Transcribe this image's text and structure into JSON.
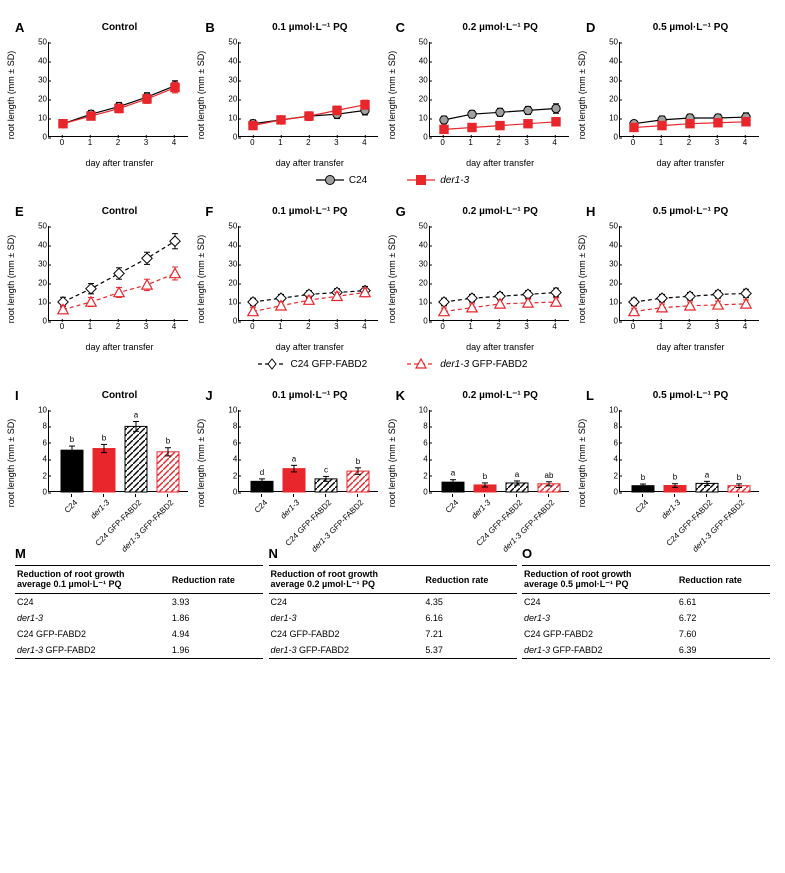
{
  "figure": {
    "ylabel": "root length (mm ± SD)",
    "xlabel_line": "day after transfer",
    "xtick_labels": [
      "0",
      "1",
      "2",
      "3",
      "4"
    ],
    "line_ylim": [
      0,
      50
    ],
    "line_yticks": [
      0,
      10,
      20,
      30,
      40,
      50
    ],
    "bar_ylim": [
      0,
      10
    ],
    "bar_yticks": [
      0,
      2,
      4,
      6,
      8,
      10
    ],
    "colors": {
      "c24": "#a0a0a0",
      "c24_stroke": "#000000",
      "der13": "#e8262b",
      "der13_stroke": "#e8262b",
      "c24_gfp_fill": "#ffffff",
      "c24_gfp_stroke": "#000000",
      "der13_gfp_fill": "#ffffff",
      "der13_gfp_stroke": "#e8262b",
      "grid": "#ffffff",
      "bg": "#ffffff",
      "black": "#000000"
    },
    "marker_size": 4.2,
    "line_width": 1.2,
    "error_cap": 3
  },
  "panels_row1": [
    {
      "letter": "A",
      "title": "Control",
      "c24": [
        7,
        12,
        16,
        21,
        27
      ],
      "c24_err": [
        2,
        2,
        2.2,
        2.3,
        2.6
      ],
      "der": [
        7,
        11,
        15,
        20,
        26
      ],
      "der_err": [
        2,
        2,
        2.2,
        2.3,
        2.8
      ]
    },
    {
      "letter": "B",
      "title": "0.1 µmol·L⁻¹ PQ",
      "c24": [
        7,
        9,
        11,
        12,
        14
      ],
      "c24_err": [
        2,
        2,
        2.2,
        2.3,
        2.4
      ],
      "der": [
        6,
        9,
        11,
        14,
        17
      ],
      "der_err": [
        1.8,
        2,
        2.2,
        2.3,
        2.4
      ]
    },
    {
      "letter": "C",
      "title": "0.2 µmol·L⁻¹ PQ",
      "c24": [
        9,
        12,
        13,
        14,
        15
      ],
      "c24_err": [
        2,
        2,
        2.1,
        2.1,
        2.5
      ],
      "der": [
        4,
        5,
        6,
        7,
        8
      ],
      "der_err": [
        1.8,
        2,
        2,
        2,
        2.2
      ]
    },
    {
      "letter": "D",
      "title": "0.5 µmol·L⁻¹ PQ",
      "c24": [
        7,
        9,
        10,
        10,
        10.5
      ],
      "c24_err": [
        1.6,
        2,
        2,
        2,
        2.2
      ],
      "der": [
        5,
        6,
        7,
        7.5,
        8
      ],
      "der_err": [
        1.6,
        1.8,
        2,
        2,
        2.2
      ]
    }
  ],
  "legend1": {
    "c24": "C24",
    "der": "der1-3"
  },
  "panels_row2": [
    {
      "letter": "E",
      "title": "Control",
      "c24g": [
        10,
        17,
        25,
        33,
        42
      ],
      "c24g_err": [
        2.5,
        2.7,
        3,
        3.2,
        4
      ],
      "derg": [
        6,
        10,
        15,
        19,
        25
      ],
      "derg_err": [
        2.2,
        2.4,
        2.6,
        3,
        3.4
      ]
    },
    {
      "letter": "F",
      "title": "0.1 µmol·L⁻¹ PQ",
      "c24g": [
        10,
        12,
        14,
        15,
        16
      ],
      "c24g_err": [
        2,
        2,
        2,
        2,
        2.2
      ],
      "derg": [
        5,
        8,
        11,
        13,
        15
      ],
      "derg_err": [
        2,
        2,
        2.1,
        2.1,
        2.3
      ]
    },
    {
      "letter": "G",
      "title": "0.2 µmol·L⁻¹ PQ",
      "c24g": [
        10,
        12,
        13,
        14,
        15
      ],
      "c24g_err": [
        2,
        2,
        2,
        2,
        2.3
      ],
      "derg": [
        5,
        7,
        9,
        9.5,
        10
      ],
      "derg_err": [
        1.8,
        2,
        2,
        2,
        2.2
      ]
    },
    {
      "letter": "H",
      "title": "0.5 µmol·L⁻¹ PQ",
      "c24g": [
        10,
        12,
        13,
        14,
        14.5
      ],
      "c24g_err": [
        2,
        2,
        2,
        2,
        2.2
      ],
      "derg": [
        5,
        7,
        8,
        8.5,
        9
      ],
      "derg_err": [
        1.7,
        1.9,
        2,
        2,
        2.1
      ]
    }
  ],
  "legend2": {
    "c24g": "C24 GFP-FABD2",
    "derg": "der1-3 GFP-FABD2"
  },
  "panels_row3": [
    {
      "letter": "I",
      "title": "Control",
      "bars": [
        5.1,
        5.3,
        8.0,
        4.9
      ],
      "err": [
        0.5,
        0.5,
        0.6,
        0.5
      ],
      "sig": [
        "b",
        "b",
        "a",
        "b"
      ]
    },
    {
      "letter": "J",
      "title": "0.1 µmol·L⁻¹ PQ",
      "bars": [
        1.3,
        2.85,
        1.6,
        2.55
      ],
      "err": [
        0.3,
        0.4,
        0.3,
        0.4
      ],
      "sig": [
        "d",
        "a",
        "c",
        "b"
      ]
    },
    {
      "letter": "K",
      "title": "0.2 µmol·L⁻¹ PQ",
      "bars": [
        1.2,
        0.86,
        1.1,
        1.0
      ],
      "err": [
        0.3,
        0.25,
        0.25,
        0.25
      ],
      "sig": [
        "a",
        "b",
        "a",
        "ab"
      ]
    },
    {
      "letter": "L",
      "title": "0.5 µmol·L⁻¹ PQ",
      "bars": [
        0.77,
        0.79,
        1.05,
        0.77
      ],
      "err": [
        0.2,
        0.22,
        0.25,
        0.22
      ],
      "sig": [
        "b",
        "b",
        "a",
        "b"
      ]
    }
  ],
  "bar_categories": [
    "C24",
    "der1-3",
    "C24 GFP-FABD2",
    "der1-3 GFP-FABD2"
  ],
  "tables": [
    {
      "letter": "M",
      "title_a": "Reduction of root growth",
      "title_b": "average 0.1 µmol·L⁻¹ PQ",
      "col2": "Reduction rate",
      "rows": [
        [
          "C24",
          "3.93"
        ],
        [
          "der1-3",
          "1.86"
        ],
        [
          "C24 GFP-FABD2",
          "4.94"
        ],
        [
          "der1-3 GFP-FABD2",
          "1.96"
        ]
      ]
    },
    {
      "letter": "N",
      "title_a": "Reduction of root growth",
      "title_b": "average 0.2 µmol·L⁻¹ PQ",
      "col2": "Reduction rate",
      "rows": [
        [
          "C24",
          "4.35"
        ],
        [
          "der1-3",
          "6.16"
        ],
        [
          "C24 GFP-FABD2",
          "7.21"
        ],
        [
          "der1-3 GFP-FABD2",
          "5.37"
        ]
      ]
    },
    {
      "letter": "O",
      "title_a": "Reduction of root growth",
      "title_b": "average 0.5 µmol·L⁻¹ PQ",
      "col2": "Reduction rate",
      "rows": [
        [
          "C24",
          "6.61"
        ],
        [
          "der1-3",
          "6.72"
        ],
        [
          "C24 GFP-FABD2",
          "7.60"
        ],
        [
          "der1-3 GFP-FABD2",
          "6.39"
        ]
      ]
    }
  ]
}
